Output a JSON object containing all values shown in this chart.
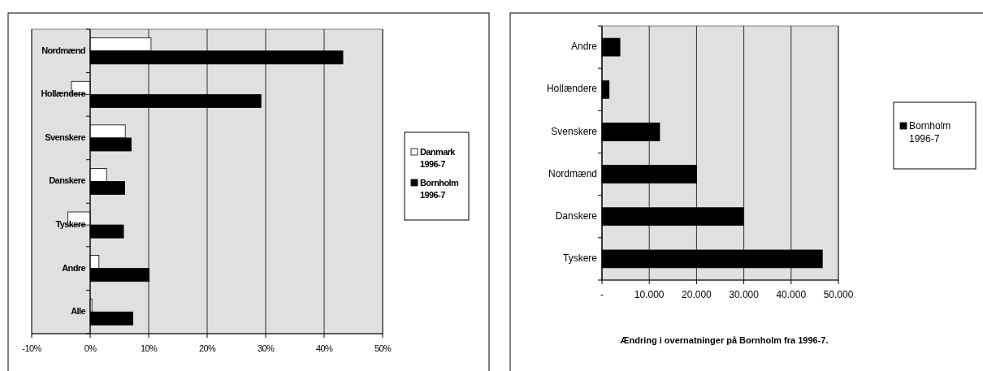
{
  "chart_data": [
    {
      "type": "bar",
      "orientation": "horizontal",
      "categories": [
        "Nordmænd",
        "Hollændere",
        "Svenskere",
        "Danskere",
        "Tyskere",
        "Andre",
        "Alle"
      ],
      "series": [
        {
          "name": "Danmark 1996-7",
          "color": "#ffffff",
          "values": [
            10.4,
            -3.2,
            6.0,
            2.8,
            -3.8,
            1.5,
            0.3
          ]
        },
        {
          "name": "Bornholm 1996-7",
          "color": "#000000",
          "values": [
            43.2,
            29.2,
            7.0,
            5.9,
            5.7,
            10.1,
            7.3
          ]
        }
      ],
      "xlim": [
        -10,
        50
      ],
      "xticks": [
        {
          "value": -10,
          "label": "-10%"
        },
        {
          "value": 0,
          "label": "0%"
        },
        {
          "value": 10,
          "label": "10%"
        },
        {
          "value": 20,
          "label": "20%"
        },
        {
          "value": 30,
          "label": "30%"
        },
        {
          "value": 40,
          "label": "40%"
        },
        {
          "value": 50,
          "label": "50%"
        }
      ],
      "grid": "x",
      "legend": "right"
    },
    {
      "type": "bar",
      "orientation": "horizontal",
      "categories": [
        "Andre",
        "Hollændere",
        "Svenskere",
        "Nordmænd",
        "Danskere",
        "Tyskere"
      ],
      "series": [
        {
          "name": "Bornholm 1996-7",
          "color": "#000000",
          "values": [
            3800,
            1500,
            12200,
            20000,
            29900,
            46600
          ]
        }
      ],
      "xlim": [
        0,
        50000
      ],
      "xticks": [
        {
          "value": 0,
          "label": "-"
        },
        {
          "value": 10000,
          "label": "10.000"
        },
        {
          "value": 20000,
          "label": "20.000"
        },
        {
          "value": 30000,
          "label": "30.000"
        },
        {
          "value": 40000,
          "label": "40.000"
        },
        {
          "value": 50000,
          "label": "50.000"
        }
      ],
      "xlabel": "Ændring i overnatninger på Bornholm fra 1996-7.",
      "grid": "x",
      "legend": "right"
    }
  ]
}
